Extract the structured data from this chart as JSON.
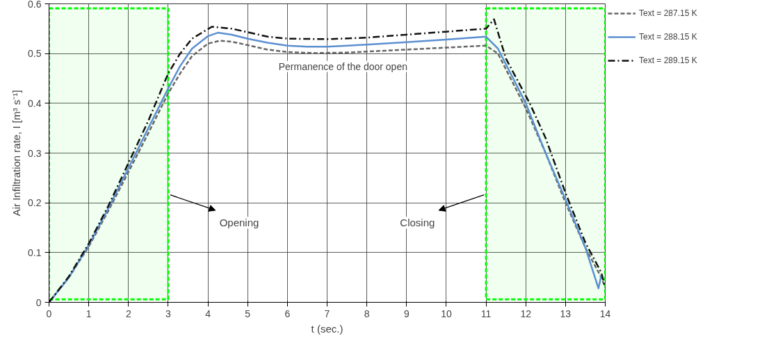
{
  "chart_data": {
    "type": "line",
    "xlabel": "t (sec.)",
    "ylabel": "Air Infiltration rate, I [m³ s⁻¹]",
    "xlim": [
      0,
      14
    ],
    "ylim": [
      0,
      0.6
    ],
    "xticks": [
      0,
      1,
      2,
      3,
      4,
      5,
      6,
      7,
      8,
      9,
      10,
      11,
      12,
      13,
      14
    ],
    "yticks": [
      0,
      0.1,
      0.2,
      0.3,
      0.4,
      0.5,
      0.6
    ],
    "grid": true,
    "legend": "right",
    "marker": "none",
    "series": [
      {
        "name": "Text = 287.15 K",
        "color": "#666666",
        "line_style": "dashed",
        "x": [
          0,
          0.5,
          1,
          1.5,
          2,
          2.5,
          3,
          3.3,
          3.6,
          4,
          4.3,
          4.6,
          5,
          5.5,
          6,
          6.7,
          7.5,
          8,
          9,
          10,
          11,
          11.3,
          12,
          12.5,
          13,
          13.5,
          13.9,
          14
        ],
        "values": [
          0,
          0.05,
          0.112,
          0.185,
          0.262,
          0.34,
          0.42,
          0.46,
          0.495,
          0.52,
          0.526,
          0.524,
          0.517,
          0.508,
          0.503,
          0.501,
          0.502,
          0.504,
          0.508,
          0.512,
          0.516,
          0.5,
          0.39,
          0.3,
          0.2,
          0.11,
          0.05,
          0.03
        ]
      },
      {
        "name": "Text = 288.15 K",
        "color": "#5b8fd0",
        "line_style": "solid",
        "x": [
          0,
          0.5,
          1,
          1.5,
          2,
          2.5,
          3,
          3.3,
          3.6,
          4,
          4.25,
          4.6,
          5,
          5.5,
          6,
          6.5,
          7,
          8,
          9,
          10,
          11,
          11.3,
          12,
          12.5,
          13,
          13.5,
          13.83,
          13.9
        ],
        "values": [
          0,
          0.05,
          0.115,
          0.19,
          0.27,
          0.35,
          0.43,
          0.475,
          0.51,
          0.535,
          0.542,
          0.538,
          0.53,
          0.522,
          0.516,
          0.514,
          0.514,
          0.518,
          0.523,
          0.528,
          0.534,
          0.51,
          0.4,
          0.3,
          0.207,
          0.11,
          0.028,
          0.054
        ]
      },
      {
        "name": "Text = 289.15 K",
        "color": "#111111",
        "line_style": "dashdot",
        "x": [
          0,
          0.5,
          1,
          1.5,
          2,
          2.5,
          3,
          3.3,
          3.6,
          4.1,
          4.6,
          5,
          5.5,
          6,
          7,
          8,
          9,
          10,
          11,
          11.2,
          11.5,
          12.1,
          12.5,
          13,
          13.5,
          13.9,
          14
        ],
        "values": [
          0,
          0.052,
          0.118,
          0.195,
          0.28,
          0.365,
          0.46,
          0.5,
          0.53,
          0.554,
          0.55,
          0.543,
          0.534,
          0.53,
          0.529,
          0.532,
          0.538,
          0.544,
          0.55,
          0.569,
          0.49,
          0.4,
          0.33,
          0.22,
          0.12,
          0.06,
          0.03
        ]
      }
    ],
    "bands": [
      {
        "axis": "x",
        "from": 0,
        "to": 3,
        "color": "#00ff00"
      },
      {
        "axis": "x",
        "from": 11,
        "to": 14,
        "color": "#00ff00"
      }
    ],
    "annotations": [
      "Permanence of the door open",
      "Opening",
      "Closing"
    ]
  }
}
